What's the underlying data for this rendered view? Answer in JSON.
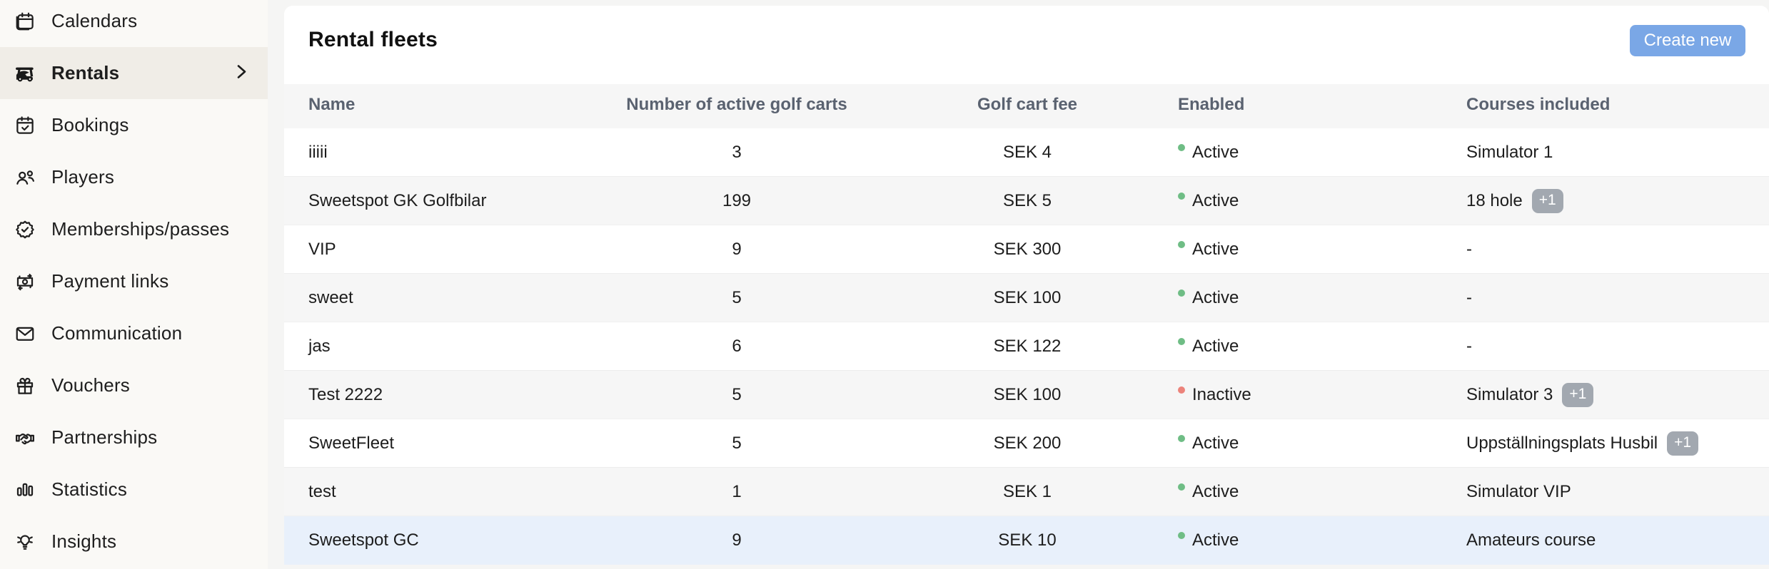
{
  "sidebar": {
    "items": [
      {
        "label": "Calendars",
        "icon": "calendar-icon",
        "active": false
      },
      {
        "label": "Rentals",
        "icon": "golf-cart-icon",
        "active": true
      },
      {
        "label": "Bookings",
        "icon": "calendar-check-icon",
        "active": false
      },
      {
        "label": "Players",
        "icon": "players-icon",
        "active": false
      },
      {
        "label": "Memberships/passes",
        "icon": "badge-check-icon",
        "active": false
      },
      {
        "label": "Payment links",
        "icon": "payment-link-icon",
        "active": false
      },
      {
        "label": "Communication",
        "icon": "envelope-icon",
        "active": false
      },
      {
        "label": "Vouchers",
        "icon": "gift-icon",
        "active": false
      },
      {
        "label": "Partnerships",
        "icon": "handshake-icon",
        "active": false
      },
      {
        "label": "Statistics",
        "icon": "bar-chart-icon",
        "active": false
      },
      {
        "label": "Insights",
        "icon": "lightbulb-icon",
        "active": false
      }
    ]
  },
  "header": {
    "title": "Rental fleets",
    "create_button_label": "Create new"
  },
  "table": {
    "columns": [
      "Name",
      "Number of active golf carts",
      "Golf cart fee",
      "Enabled",
      "Courses included"
    ],
    "rows": [
      {
        "name": "iiiii",
        "carts": "3",
        "fee": "SEK 4",
        "status": "Active",
        "courses": "Simulator 1",
        "extra": null,
        "highlight": false
      },
      {
        "name": "Sweetspot GK Golfbilar",
        "carts": "199",
        "fee": "SEK 5",
        "status": "Active",
        "courses": "18 hole",
        "extra": "+1",
        "highlight": false
      },
      {
        "name": "VIP",
        "carts": "9",
        "fee": "SEK 300",
        "status": "Active",
        "courses": "-",
        "extra": null,
        "highlight": false
      },
      {
        "name": "sweet",
        "carts": "5",
        "fee": "SEK 100",
        "status": "Active",
        "courses": "-",
        "extra": null,
        "highlight": false
      },
      {
        "name": "jas",
        "carts": "6",
        "fee": "SEK 122",
        "status": "Active",
        "courses": "-",
        "extra": null,
        "highlight": false
      },
      {
        "name": "Test 2222",
        "carts": "5",
        "fee": "SEK 100",
        "status": "Inactive",
        "courses": "Simulator 3",
        "extra": "+1",
        "highlight": false
      },
      {
        "name": "SweetFleet",
        "carts": "5",
        "fee": "SEK 200",
        "status": "Active",
        "courses": "Uppställningsplats Husbil",
        "extra": "+1",
        "highlight": false
      },
      {
        "name": "test",
        "carts": "1",
        "fee": "SEK 1",
        "status": "Active",
        "courses": "Simulator VIP",
        "extra": null,
        "highlight": false
      },
      {
        "name": "Sweetspot GC",
        "carts": "9",
        "fee": "SEK 10",
        "status": "Active",
        "courses": "Amateurs course",
        "extra": null,
        "highlight": true
      }
    ]
  },
  "colors": {
    "accent_button": "#7aa7e6",
    "status_active_dot": "#6fbd85",
    "status_inactive_dot": "#ec837b",
    "badge_background": "#a2a8b0",
    "highlight_row": "#e8f0fb",
    "sidebar_background": "#faf9f6",
    "sidebar_active_background": "#f0ede7"
  }
}
